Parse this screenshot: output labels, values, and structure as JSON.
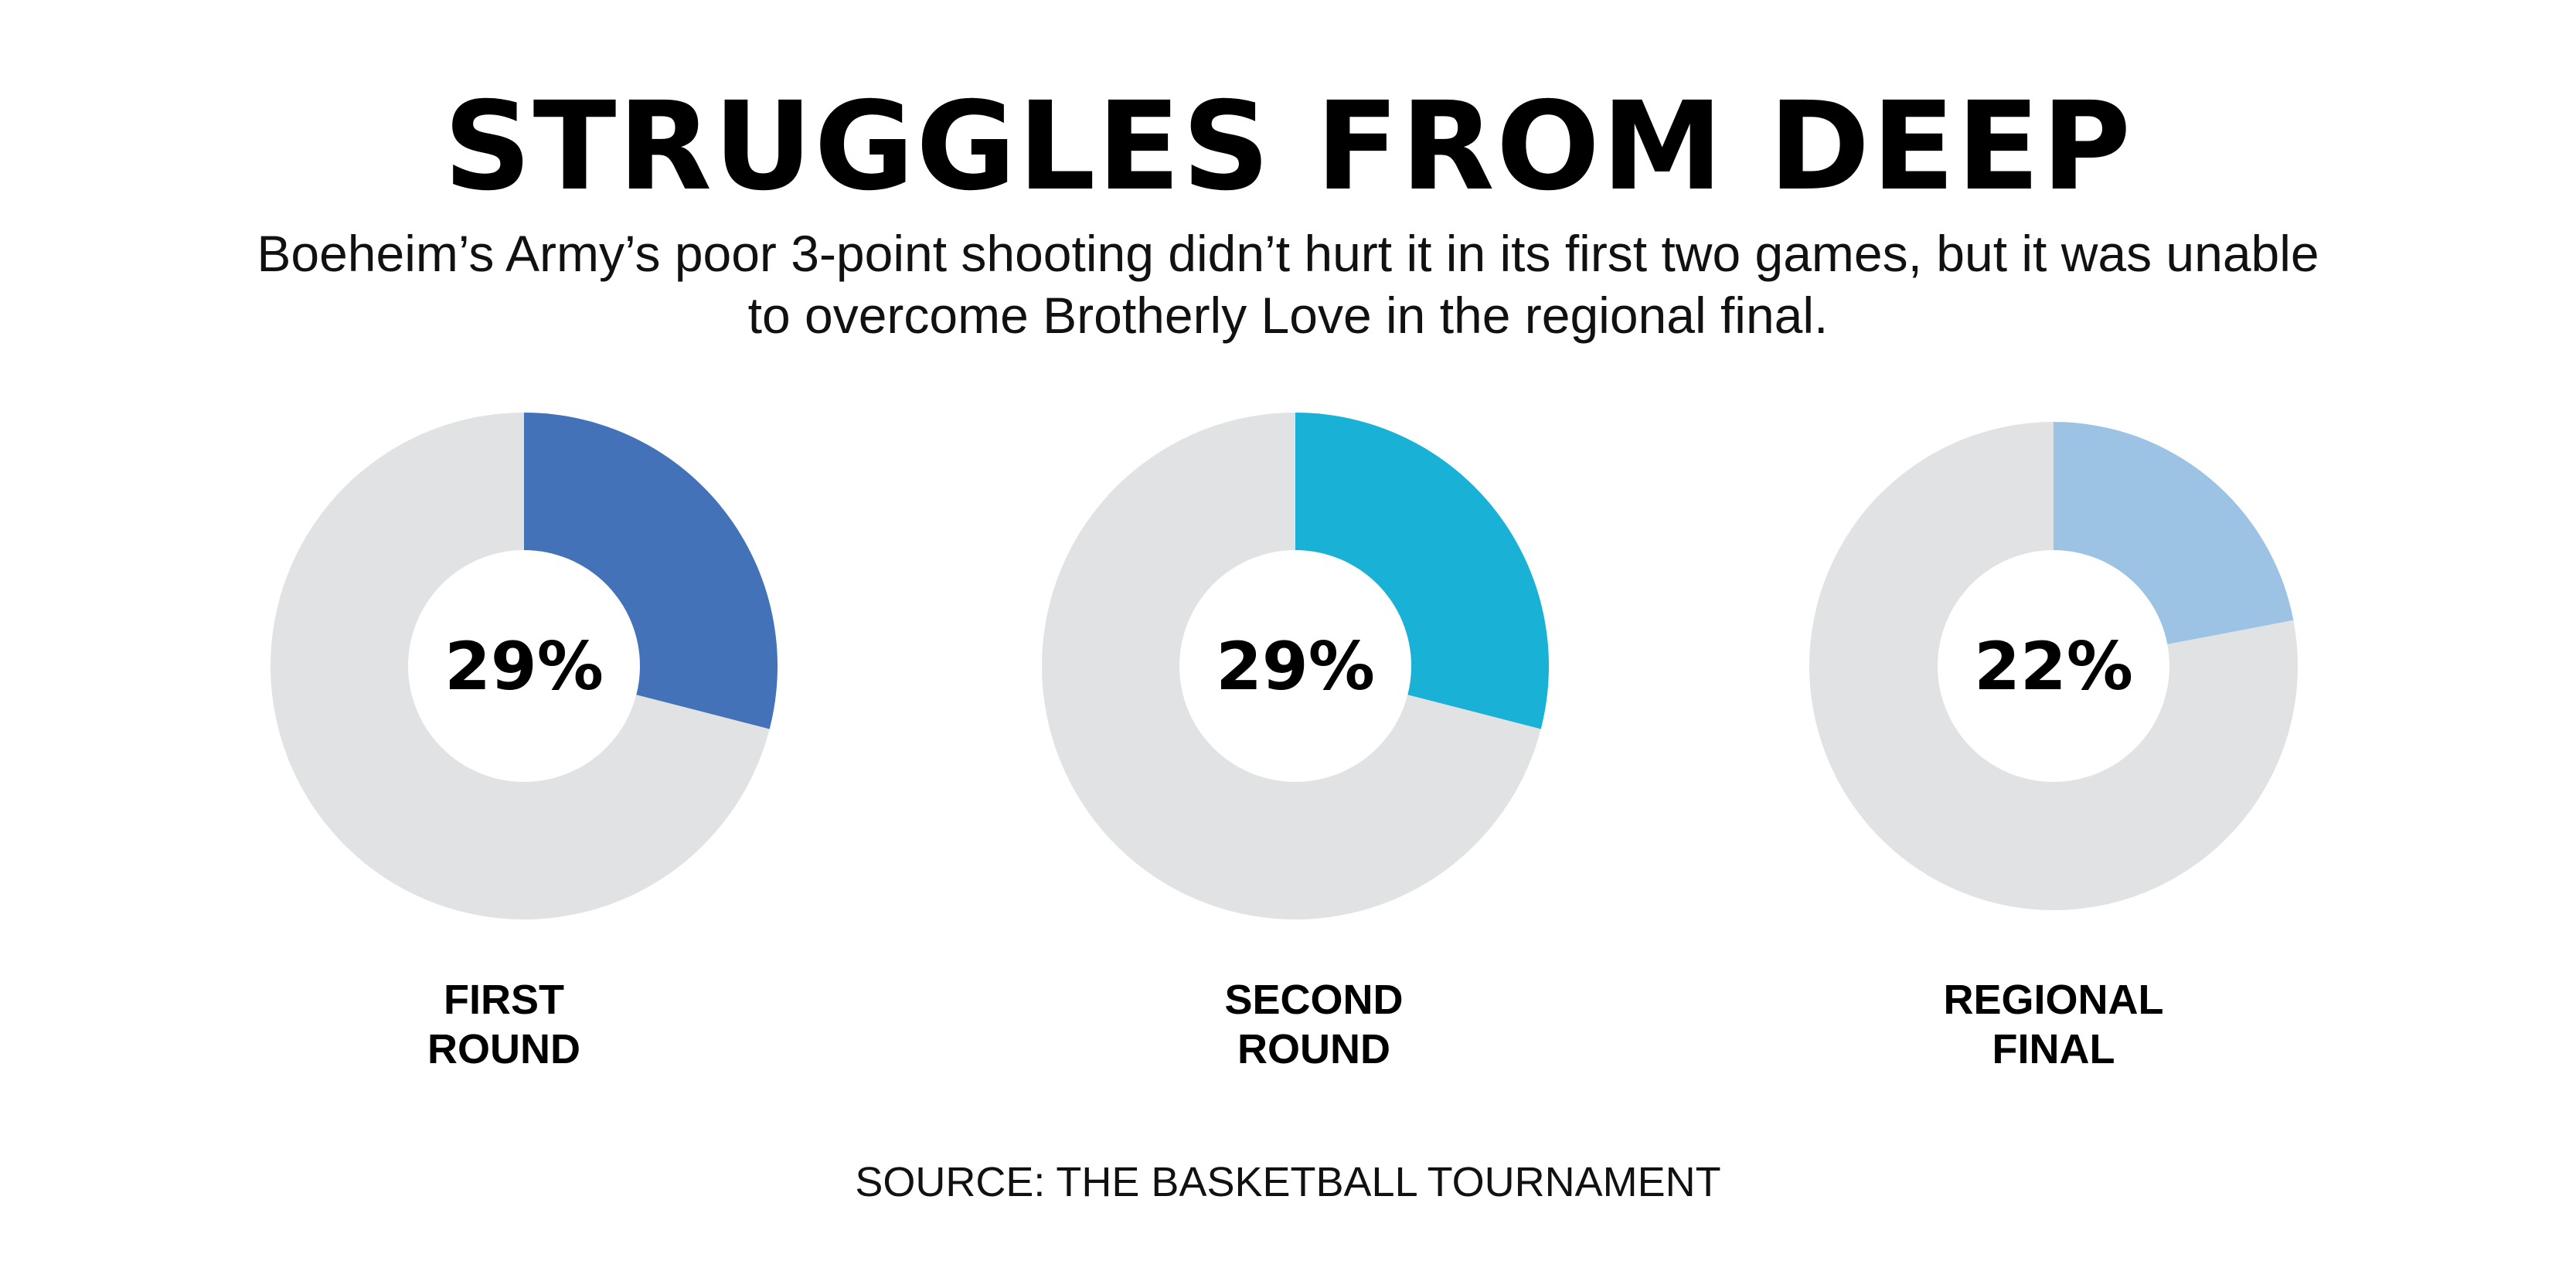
{
  "title": "STRUGGLES FROM DEEP",
  "subtitle": "Boeheim’s Army’s poor 3-point shooting didn’t hurt it in its first two games, but it was unable to overcome Brotherly Love in the regional final.",
  "source": "SOURCE: THE BASKETBALL TOURNAMENT",
  "chart_data": [
    {
      "type": "pie",
      "value_label": "29%",
      "category_lines": [
        "FIRST",
        "ROUND"
      ],
      "values": [
        29,
        71
      ],
      "colors": [
        "#4472b8",
        "#e1e2e4"
      ]
    },
    {
      "type": "pie",
      "value_label": "29%",
      "category_lines": [
        "SECOND",
        "ROUND"
      ],
      "values": [
        29,
        71
      ],
      "colors": [
        "#1ab1d6",
        "#e1e2e4"
      ]
    },
    {
      "type": "pie",
      "value_label": "22%",
      "category_lines": [
        "REGIONAL",
        "FINAL"
      ],
      "values": [
        22,
        78
      ],
      "colors": [
        "#9cc3e4",
        "#e1e2e4"
      ]
    }
  ]
}
